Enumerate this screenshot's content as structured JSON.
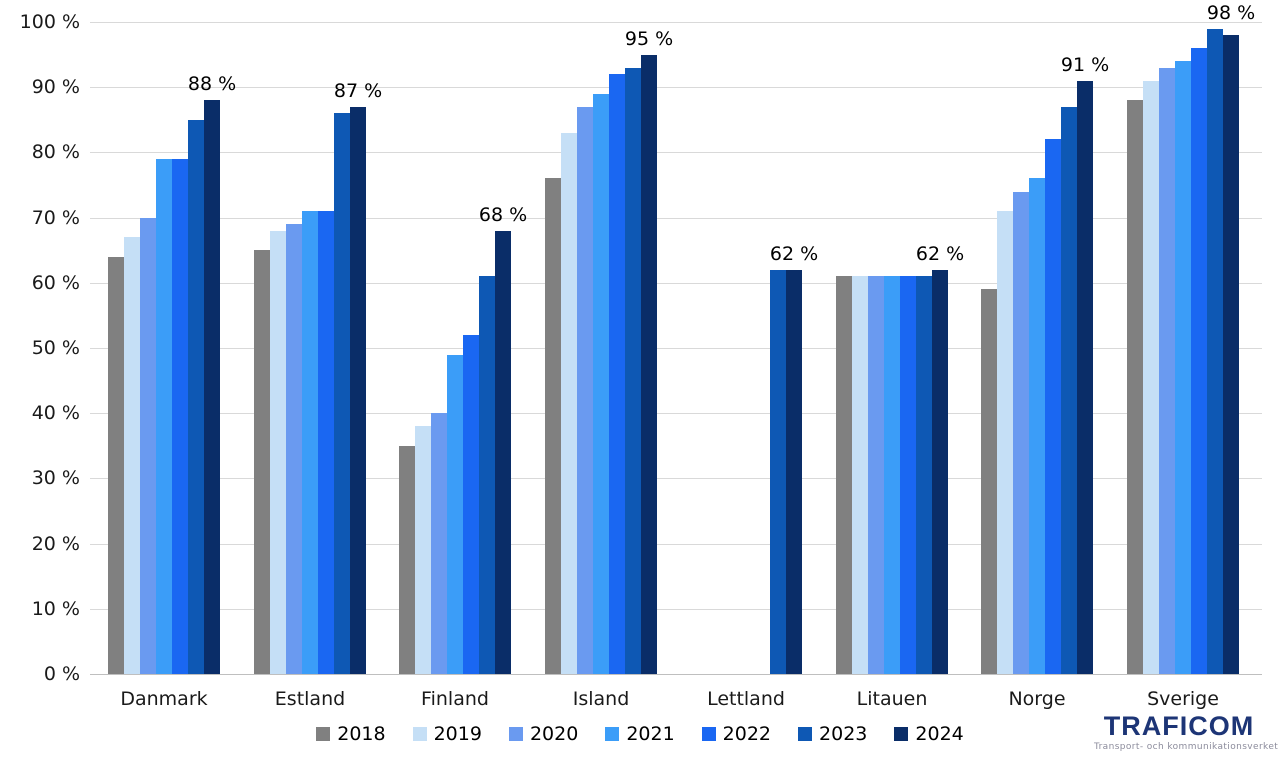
{
  "chart_data": {
    "type": "bar",
    "title": "",
    "xlabel": "",
    "ylabel": "",
    "ylim": [
      0,
      100
    ],
    "grid": true,
    "legend_position": "bottom",
    "y_ticks": [
      "100 %",
      "90 %",
      "80 %",
      "70 %",
      "60 %",
      "50 %",
      "40 %",
      "30 %",
      "20 %",
      "10 %",
      "0 %"
    ],
    "categories": [
      "Danmark",
      "Estland",
      "Finland",
      "Island",
      "Lettland",
      "Litauen",
      "Norge",
      "Sverige"
    ],
    "series": [
      {
        "name": "2018",
        "color": "#808080",
        "values": [
          64,
          65,
          35,
          76,
          null,
          61,
          59,
          88
        ]
      },
      {
        "name": "2019",
        "color": "#c5dff6",
        "values": [
          67,
          68,
          38,
          83,
          null,
          61,
          71,
          91
        ]
      },
      {
        "name": "2020",
        "color": "#6a9af0",
        "values": [
          70,
          69,
          40,
          87,
          null,
          61,
          74,
          93
        ]
      },
      {
        "name": "2021",
        "color": "#3b9df8",
        "values": [
          79,
          71,
          49,
          89,
          null,
          61,
          76,
          94
        ]
      },
      {
        "name": "2022",
        "color": "#1a67f2",
        "values": [
          79,
          71,
          52,
          92,
          null,
          61,
          82,
          96
        ]
      },
      {
        "name": "2023",
        "color": "#0e58b4",
        "values": [
          85,
          86,
          61,
          93,
          62,
          61,
          87,
          99
        ]
      },
      {
        "name": "2024",
        "color": "#0a2d68",
        "values": [
          88,
          87,
          68,
          95,
          62,
          62,
          91,
          98
        ]
      }
    ],
    "data_labels": [
      "88 %",
      "87 %",
      "68 %",
      "95 %",
      "62 %",
      "62 %",
      "91 %",
      "98 %"
    ]
  },
  "branding": {
    "logo_text": "TRAFICOM",
    "tagline": "Transport- och kommunikationsverket"
  }
}
